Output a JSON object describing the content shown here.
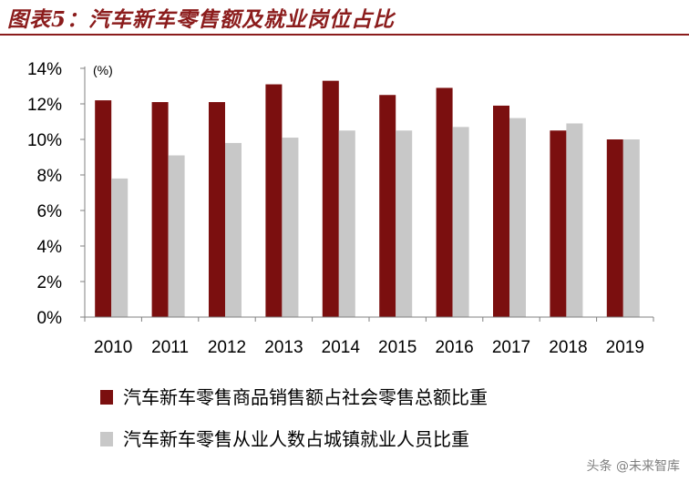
{
  "figure_title": "图表5：汽车新车零售额及就业岗位占比",
  "watermark": "头条 @未来智库",
  "colors": {
    "title": "#8b1c1c",
    "series_1": "#7b0f0f",
    "series_2": "#c8c8c8",
    "axis": "#808080"
  },
  "chart_data": {
    "type": "bar",
    "unit_label": "(%)",
    "categories": [
      "2010",
      "2011",
      "2012",
      "2013",
      "2014",
      "2015",
      "2016",
      "2017",
      "2018",
      "2019"
    ],
    "ylim": [
      0,
      14
    ],
    "yticks": [
      0,
      2,
      4,
      6,
      8,
      10,
      12,
      14
    ],
    "ytick_labels": [
      "0%",
      "2%",
      "4%",
      "6%",
      "8%",
      "10%",
      "12%",
      "14%"
    ],
    "grid": false,
    "legend_position": "bottom",
    "series": [
      {
        "name": "汽车新车零售商品销售额占社会零售总额比重",
        "values": [
          12.2,
          12.1,
          12.1,
          13.1,
          13.3,
          12.5,
          12.9,
          11.9,
          10.5,
          10.0
        ]
      },
      {
        "name": "汽车新车零售从业人数占城镇就业人员比重",
        "values": [
          7.8,
          9.1,
          9.8,
          10.1,
          10.5,
          10.5,
          10.7,
          11.2,
          10.9,
          10.0
        ]
      }
    ]
  }
}
